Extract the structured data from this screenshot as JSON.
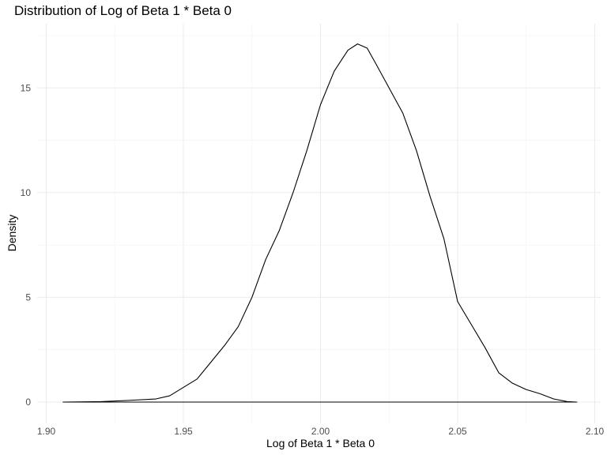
{
  "chart_data": {
    "type": "line",
    "title": "Distribution of Log of Beta 1 * Beta 0",
    "xlabel": "Log of Beta 1 * Beta 0",
    "ylabel": "Density",
    "xlim": [
      1.9,
      2.1
    ],
    "ylim": [
      0,
      17.5
    ],
    "x_ticks": [
      1.9,
      1.95,
      2.0,
      2.05,
      2.1
    ],
    "x_tick_labels": [
      "1.90",
      "1.95",
      "2.00",
      "2.05",
      "2.10"
    ],
    "y_ticks": [
      0,
      5,
      10,
      15
    ],
    "y_tick_labels": [
      "0",
      "5",
      "10",
      "15"
    ],
    "grid": true,
    "series": [
      {
        "color": "#000000",
        "x": [
          1.906,
          1.92,
          1.93,
          1.94,
          1.945,
          1.95,
          1.955,
          1.96,
          1.965,
          1.97,
          1.975,
          1.98,
          1.985,
          1.99,
          1.995,
          2.0,
          2.005,
          2.01,
          2.0135,
          2.017,
          2.02,
          2.025,
          2.03,
          2.035,
          2.04,
          2.045,
          2.05,
          2.055,
          2.06,
          2.065,
          2.07,
          2.075,
          2.08,
          2.085,
          2.09,
          2.0935
        ],
        "y": [
          0,
          0.02,
          0.08,
          0.15,
          0.3,
          0.7,
          1.1,
          1.9,
          2.7,
          3.6,
          5.0,
          6.8,
          8.2,
          10.0,
          12.0,
          14.2,
          15.8,
          16.8,
          17.1,
          16.9,
          16.2,
          15.0,
          13.8,
          12.0,
          9.8,
          7.8,
          4.8,
          3.7,
          2.6,
          1.4,
          0.9,
          0.6,
          0.4,
          0.15,
          0.02,
          0
        ]
      }
    ]
  }
}
